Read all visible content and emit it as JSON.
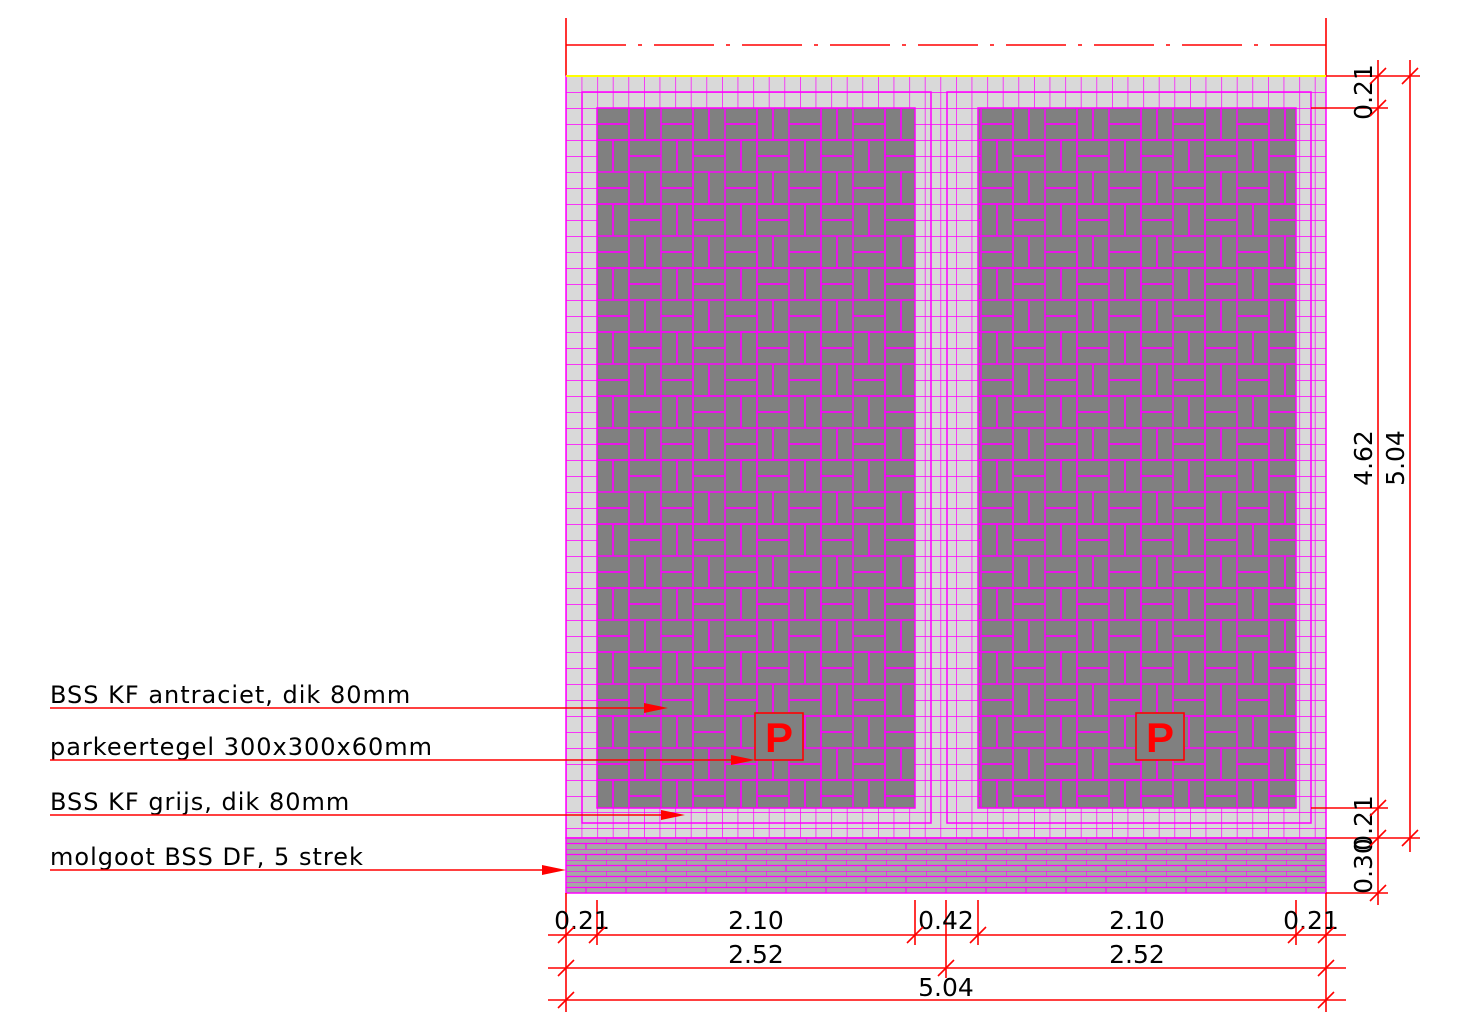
{
  "labels": [
    "BSS KF antraciet, dik 80mm",
    "parkeertegel 300x300x60mm",
    "BSS KF grijs, dik 80mm",
    "molgoot BSS DF, 5 strek"
  ],
  "signs": [
    "P",
    "P"
  ],
  "dimensions": {
    "bottom": [
      "0.21",
      "2.10",
      "0.42",
      "2.10",
      "0.21"
    ],
    "bottom_sub": [
      "2.52",
      "2.52"
    ],
    "bottom_total": "5.04",
    "right": [
      "0.21",
      "4.62",
      "0.21",
      "0.30"
    ],
    "right_total": "5.04"
  }
}
